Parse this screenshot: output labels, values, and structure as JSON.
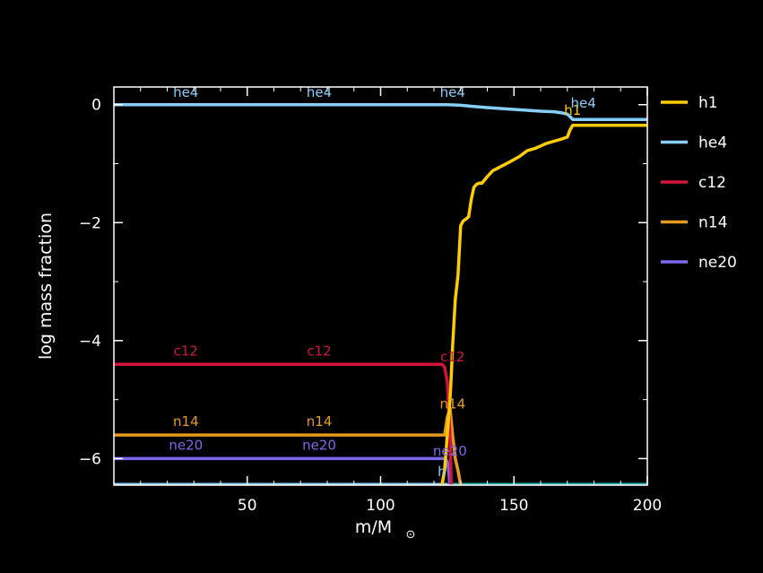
{
  "chart_data": {
    "type": "line",
    "xlabel": "m/M",
    "xlabel_sub": "⊙",
    "ylabel": "log mass fraction",
    "xlim": [
      0,
      200
    ],
    "ylim": [
      -6.45,
      0.3
    ],
    "xticks": [
      50,
      100,
      150,
      200
    ],
    "yticks": [
      0,
      -2,
      -4,
      -6
    ],
    "grid": false,
    "legend_position": "right",
    "series": [
      {
        "name": "h1",
        "color": "#FFCC00",
        "x": [
          123,
          124,
          125,
          126,
          126.5,
          127,
          128,
          129,
          130,
          131,
          132,
          133,
          134,
          135,
          136,
          137,
          138,
          140,
          142,
          145,
          148,
          150,
          152,
          155,
          158,
          160,
          162,
          165,
          168,
          170,
          171,
          172,
          200
        ],
        "y": [
          -6.45,
          -6.2,
          -5.6,
          -5.0,
          -4.6,
          -4.1,
          -3.3,
          -2.9,
          -2.05,
          -1.97,
          -1.94,
          -1.9,
          -1.6,
          -1.4,
          -1.35,
          -1.33,
          -1.33,
          -1.22,
          -1.12,
          -1.05,
          -0.98,
          -0.93,
          -0.88,
          -0.78,
          -0.74,
          -0.7,
          -0.66,
          -0.62,
          -0.58,
          -0.55,
          -0.43,
          -0.35,
          -0.35
        ],
        "labels": [
          {
            "text": "h1",
            "x": 172,
            "y": -0.17
          }
        ]
      },
      {
        "name": "he4",
        "color": "#87CEFA",
        "x": [
          0,
          50,
          100,
          120,
          125,
          130,
          135,
          140,
          150,
          160,
          165,
          168,
          170,
          171,
          172,
          200
        ],
        "y": [
          0,
          0,
          0,
          0,
          0,
          -0.01,
          -0.03,
          -0.05,
          -0.08,
          -0.11,
          -0.12,
          -0.14,
          -0.16,
          -0.2,
          -0.25,
          -0.25
        ],
        "labels": [
          {
            "text": "he4",
            "x": 27,
            "y": 0.13
          },
          {
            "text": "he4",
            "x": 77,
            "y": 0.13
          },
          {
            "text": "he4",
            "x": 127,
            "y": 0.13
          },
          {
            "text": "he4",
            "x": 176,
            "y": -0.05
          }
        ]
      },
      {
        "name": "c12",
        "color": "#D2143C",
        "x": [
          0,
          50,
          100,
          123,
          124,
          125,
          126,
          126.5
        ],
        "y": [
          -4.4,
          -4.4,
          -4.4,
          -4.4,
          -4.45,
          -4.7,
          -5.6,
          -6.45
        ],
        "labels": [
          {
            "text": "c12",
            "x": 27,
            "y": -4.25
          },
          {
            "text": "c12",
            "x": 77,
            "y": -4.25
          },
          {
            "text": "c12",
            "x": 127,
            "y": -4.35
          }
        ]
      },
      {
        "name": "n14",
        "color": "#E69B1E",
        "x": [
          0,
          50,
          100,
          124,
          125,
          126,
          127,
          128,
          129,
          130
        ],
        "y": [
          -5.6,
          -5.6,
          -5.6,
          -5.6,
          -5.3,
          -5.15,
          -5.6,
          -6.0,
          -6.2,
          -6.45
        ],
        "labels": [
          {
            "text": "n14",
            "x": 27,
            "y": -5.45
          },
          {
            "text": "n14",
            "x": 77,
            "y": -5.45
          },
          {
            "text": "n14",
            "x": 127,
            "y": -5.15
          }
        ]
      },
      {
        "name": "ne20",
        "color": "#7B68EE",
        "x": [
          0,
          50,
          100,
          124,
          125,
          125.5,
          126
        ],
        "y": [
          -6.0,
          -6.0,
          -6.0,
          -6.0,
          -6.05,
          -6.2,
          -6.45
        ],
        "labels": [
          {
            "text": "ne20",
            "x": 27,
            "y": -5.85
          },
          {
            "text": "ne20",
            "x": 77,
            "y": -5.85
          },
          {
            "text": "ne20",
            "x": 126,
            "y": -5.95
          }
        ]
      }
    ],
    "extra_labels": [
      {
        "text": "h",
        "x": 123,
        "y": -6.3,
        "color": "#87CEFA"
      }
    ],
    "floor_line": {
      "y": -6.45,
      "color": "#20B2AA",
      "x_start": 125,
      "x_end": 200
    }
  }
}
